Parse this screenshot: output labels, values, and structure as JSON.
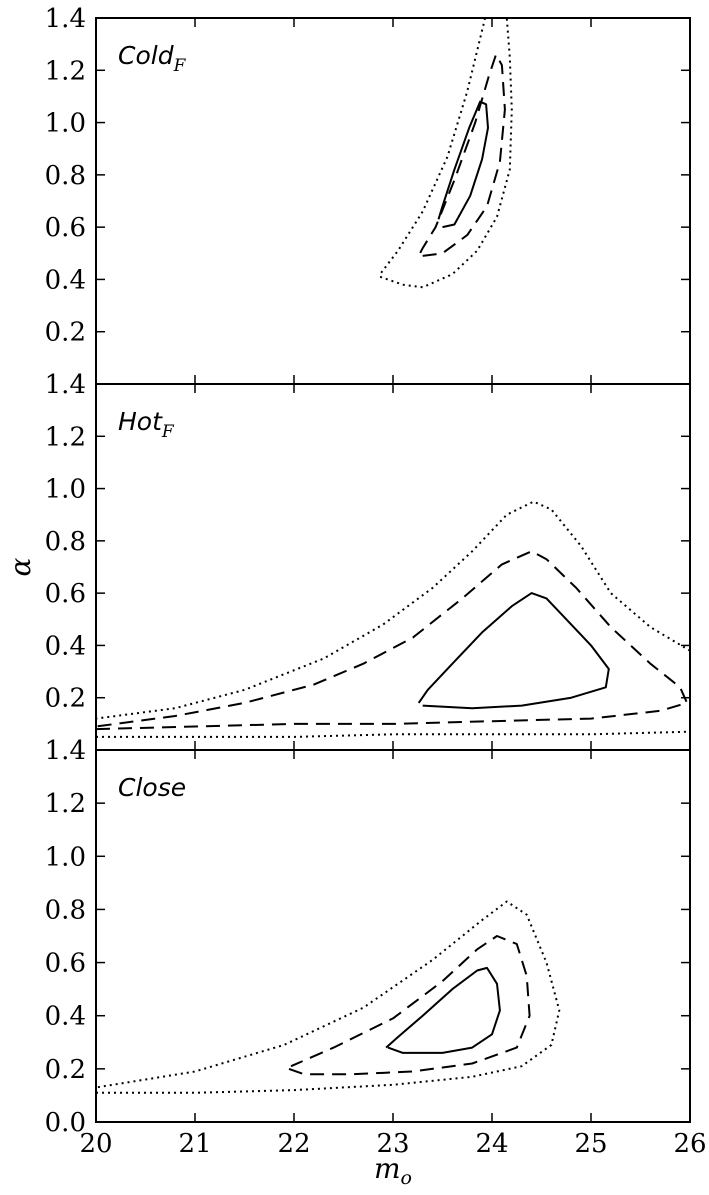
{
  "chart_data": {
    "type": "contour",
    "shared_x": {
      "label": "m",
      "label_subscript": "o",
      "range": [
        20,
        26
      ],
      "ticks": [
        "20",
        "21",
        "22",
        "23",
        "24",
        "25",
        "26"
      ]
    },
    "shared_y_label": "α",
    "line_styles": {
      "inner": "solid",
      "middle": "dashed",
      "outer": "dotted"
    },
    "panels": [
      {
        "label": "Cold",
        "label_subscript": "F",
        "ylim": [
          0.0,
          1.4
        ],
        "yticks": [
          "1.4",
          "1.2",
          "1.0",
          "0.8",
          "0.6",
          "0.4",
          "0.2"
        ],
        "contours": [
          {
            "style": "solid",
            "points": [
              [
                23.5,
                0.6
              ],
              [
                23.62,
                0.61
              ],
              [
                23.78,
                0.72
              ],
              [
                23.9,
                0.86
              ],
              [
                23.96,
                0.98
              ],
              [
                23.94,
                1.07
              ],
              [
                23.88,
                1.08
              ],
              [
                23.77,
                0.98
              ],
              [
                23.62,
                0.82
              ],
              [
                23.5,
                0.68
              ],
              [
                23.46,
                0.63
              ]
            ]
          },
          {
            "style": "dashed",
            "points": [
              [
                23.3,
                0.49
              ],
              [
                23.5,
                0.5
              ],
              [
                23.75,
                0.57
              ],
              [
                23.95,
                0.68
              ],
              [
                24.08,
                0.85
              ],
              [
                24.13,
                1.05
              ],
              [
                24.1,
                1.22
              ],
              [
                24.04,
                1.26
              ],
              [
                23.97,
                1.18
              ],
              [
                23.83,
                1.0
              ],
              [
                23.62,
                0.78
              ],
              [
                23.43,
                0.6
              ],
              [
                23.3,
                0.52
              ],
              [
                23.26,
                0.49
              ]
            ]
          },
          {
            "style": "dotted",
            "points": [
              [
                22.87,
                0.41
              ],
              [
                23.1,
                0.38
              ],
              [
                23.3,
                0.37
              ],
              [
                23.6,
                0.42
              ],
              [
                23.85,
                0.51
              ],
              [
                24.05,
                0.64
              ],
              [
                24.18,
                0.82
              ],
              [
                24.2,
                1.05
              ],
              [
                24.18,
                1.25
              ],
              [
                24.15,
                1.4
              ],
              null,
              [
                23.93,
                1.4
              ],
              [
                23.75,
                1.12
              ],
              [
                23.55,
                0.87
              ],
              [
                23.3,
                0.66
              ],
              [
                23.05,
                0.51
              ],
              [
                22.87,
                0.42
              ]
            ]
          }
        ]
      },
      {
        "label": "Hot",
        "label_subscript": "F",
        "ylim": [
          0.0,
          1.4
        ],
        "yticks": [
          "1.4",
          "1.2",
          "1.0",
          "0.8",
          "0.6",
          "0.4",
          "0.2"
        ],
        "contours": [
          {
            "style": "solid",
            "points": [
              [
                23.3,
                0.17
              ],
              [
                23.8,
                0.16
              ],
              [
                24.3,
                0.17
              ],
              [
                24.8,
                0.2
              ],
              [
                25.15,
                0.24
              ],
              [
                25.18,
                0.31
              ],
              [
                25.0,
                0.4
              ],
              [
                24.75,
                0.5
              ],
              [
                24.55,
                0.58
              ],
              [
                24.4,
                0.6
              ],
              [
                24.2,
                0.55
              ],
              [
                23.9,
                0.45
              ],
              [
                23.6,
                0.33
              ],
              [
                23.35,
                0.23
              ],
              [
                23.26,
                0.18
              ]
            ]
          },
          {
            "style": "dashed",
            "points": [
              [
                20.0,
                0.08
              ],
              [
                21.0,
                0.09
              ],
              [
                22.0,
                0.1
              ],
              [
                23.0,
                0.1
              ],
              [
                24.0,
                0.11
              ],
              [
                25.0,
                0.12
              ],
              [
                25.7,
                0.15
              ],
              [
                25.97,
                0.18
              ],
              [
                25.9,
                0.24
              ],
              [
                25.6,
                0.33
              ],
              [
                25.2,
                0.47
              ],
              [
                24.85,
                0.62
              ],
              [
                24.55,
                0.73
              ],
              [
                24.4,
                0.76
              ],
              [
                24.1,
                0.71
              ],
              [
                23.7,
                0.58
              ],
              [
                23.2,
                0.43
              ],
              [
                22.7,
                0.33
              ],
              [
                22.2,
                0.25
              ],
              [
                21.5,
                0.18
              ],
              [
                20.8,
                0.13
              ],
              [
                20.0,
                0.09
              ]
            ]
          },
          {
            "style": "dotted",
            "points": [
              [
                20.0,
                0.05
              ],
              [
                21.0,
                0.05
              ],
              [
                22.0,
                0.05
              ],
              [
                23.0,
                0.06
              ],
              [
                24.0,
                0.06
              ],
              [
                25.0,
                0.06
              ],
              [
                26.0,
                0.07
              ],
              null,
              [
                26.0,
                0.38
              ],
              [
                25.6,
                0.47
              ],
              [
                25.2,
                0.6
              ],
              [
                24.9,
                0.78
              ],
              [
                24.6,
                0.92
              ],
              [
                24.42,
                0.95
              ],
              [
                24.15,
                0.9
              ],
              [
                23.8,
                0.76
              ],
              [
                23.4,
                0.62
              ],
              [
                22.9,
                0.48
              ],
              [
                22.3,
                0.35
              ],
              [
                21.5,
                0.23
              ],
              [
                20.8,
                0.16
              ],
              [
                20.0,
                0.12
              ]
            ]
          }
        ]
      },
      {
        "label": "Close",
        "label_subscript": "",
        "ylim": [
          0.0,
          1.4
        ],
        "yticks": [
          "1.4",
          "1.2",
          "1.0",
          "0.8",
          "0.6",
          "0.4",
          "0.2",
          "0.0"
        ],
        "contours": [
          {
            "style": "solid",
            "points": [
              [
                22.95,
                0.28
              ],
              [
                23.1,
                0.26
              ],
              [
                23.5,
                0.26
              ],
              [
                23.8,
                0.28
              ],
              [
                24.0,
                0.33
              ],
              [
                24.08,
                0.42
              ],
              [
                24.05,
                0.52
              ],
              [
                23.95,
                0.58
              ],
              [
                23.85,
                0.57
              ],
              [
                23.6,
                0.5
              ],
              [
                23.3,
                0.4
              ],
              [
                23.05,
                0.32
              ],
              [
                22.93,
                0.28
              ]
            ]
          },
          {
            "style": "dashed",
            "points": [
              [
                21.95,
                0.2
              ],
              [
                22.1,
                0.18
              ],
              [
                22.6,
                0.18
              ],
              [
                23.2,
                0.19
              ],
              [
                23.8,
                0.22
              ],
              [
                24.25,
                0.28
              ],
              [
                24.38,
                0.4
              ],
              [
                24.35,
                0.55
              ],
              [
                24.25,
                0.67
              ],
              [
                24.05,
                0.7
              ],
              [
                23.85,
                0.65
              ],
              [
                23.5,
                0.53
              ],
              [
                23.0,
                0.39
              ],
              [
                22.4,
                0.28
              ],
              [
                21.97,
                0.21
              ]
            ]
          },
          {
            "style": "dotted",
            "points": [
              [
                20.0,
                0.11
              ],
              [
                21.0,
                0.11
              ],
              [
                22.0,
                0.12
              ],
              [
                23.0,
                0.14
              ],
              [
                23.8,
                0.17
              ],
              [
                24.3,
                0.21
              ],
              [
                24.6,
                0.29
              ],
              [
                24.68,
                0.42
              ],
              [
                24.55,
                0.6
              ],
              [
                24.35,
                0.78
              ],
              [
                24.15,
                0.83
              ],
              [
                23.9,
                0.76
              ],
              [
                23.4,
                0.61
              ],
              [
                22.7,
                0.43
              ],
              [
                21.9,
                0.29
              ],
              [
                21.0,
                0.19
              ],
              [
                20.0,
                0.13
              ]
            ]
          }
        ]
      }
    ]
  }
}
